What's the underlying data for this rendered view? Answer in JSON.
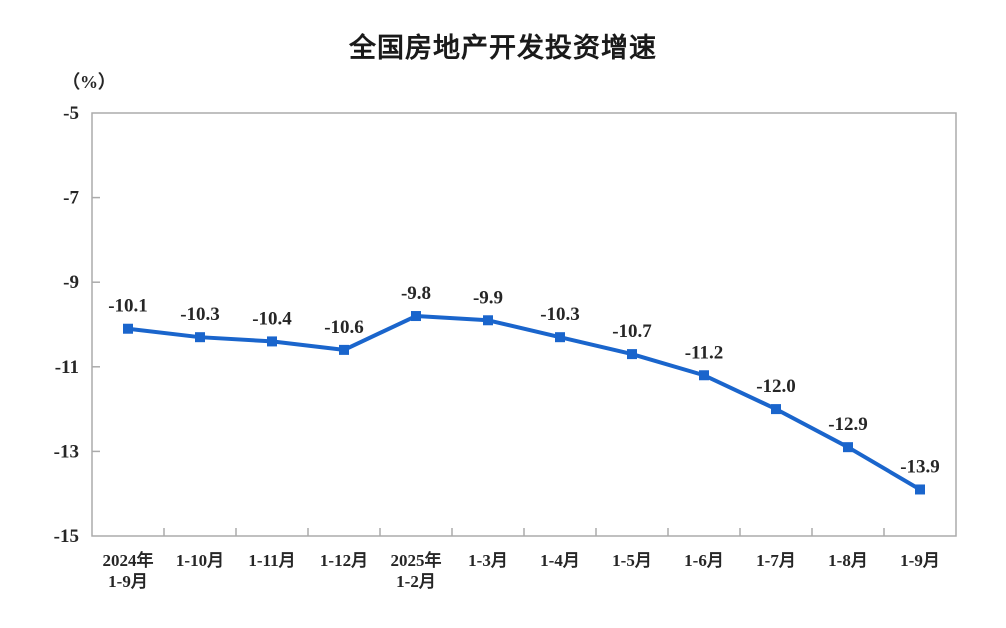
{
  "chart_data": {
    "type": "line",
    "title": "全国房地产开发投资增速",
    "unit_label": "（%）",
    "categories": [
      "2024年\n1-9月",
      "1-10月",
      "1-11月",
      "1-12月",
      "2025年\n1-2月",
      "1-3月",
      "1-4月",
      "1-5月",
      "1-6月",
      "1-7月",
      "1-8月",
      "1-9月"
    ],
    "values": [
      -10.1,
      -10.3,
      -10.4,
      -10.6,
      -9.8,
      -9.9,
      -10.3,
      -10.7,
      -11.2,
      -12.0,
      -12.9,
      -13.9
    ],
    "data_labels": [
      "-10.1",
      "-10.3",
      "-10.4",
      "-10.6",
      "-9.8",
      "-9.9",
      "-10.3",
      "-10.7",
      "-11.2",
      "-12.0",
      "-12.9",
      "-13.9"
    ],
    "y_ticks": [
      -5,
      -7,
      -9,
      -11,
      -13,
      -15
    ],
    "y_tick_labels": [
      "-5",
      "-7",
      "-9",
      "-11",
      "-13",
      "-15"
    ],
    "ylim": [
      -15,
      -5
    ],
    "grid": false,
    "legend_position": "none",
    "marker": "square",
    "colors": {
      "line": "#1a65cc",
      "marker": "#1a65cc",
      "axis": "#ababab",
      "text": "#262626",
      "background": "#ffffff"
    }
  }
}
